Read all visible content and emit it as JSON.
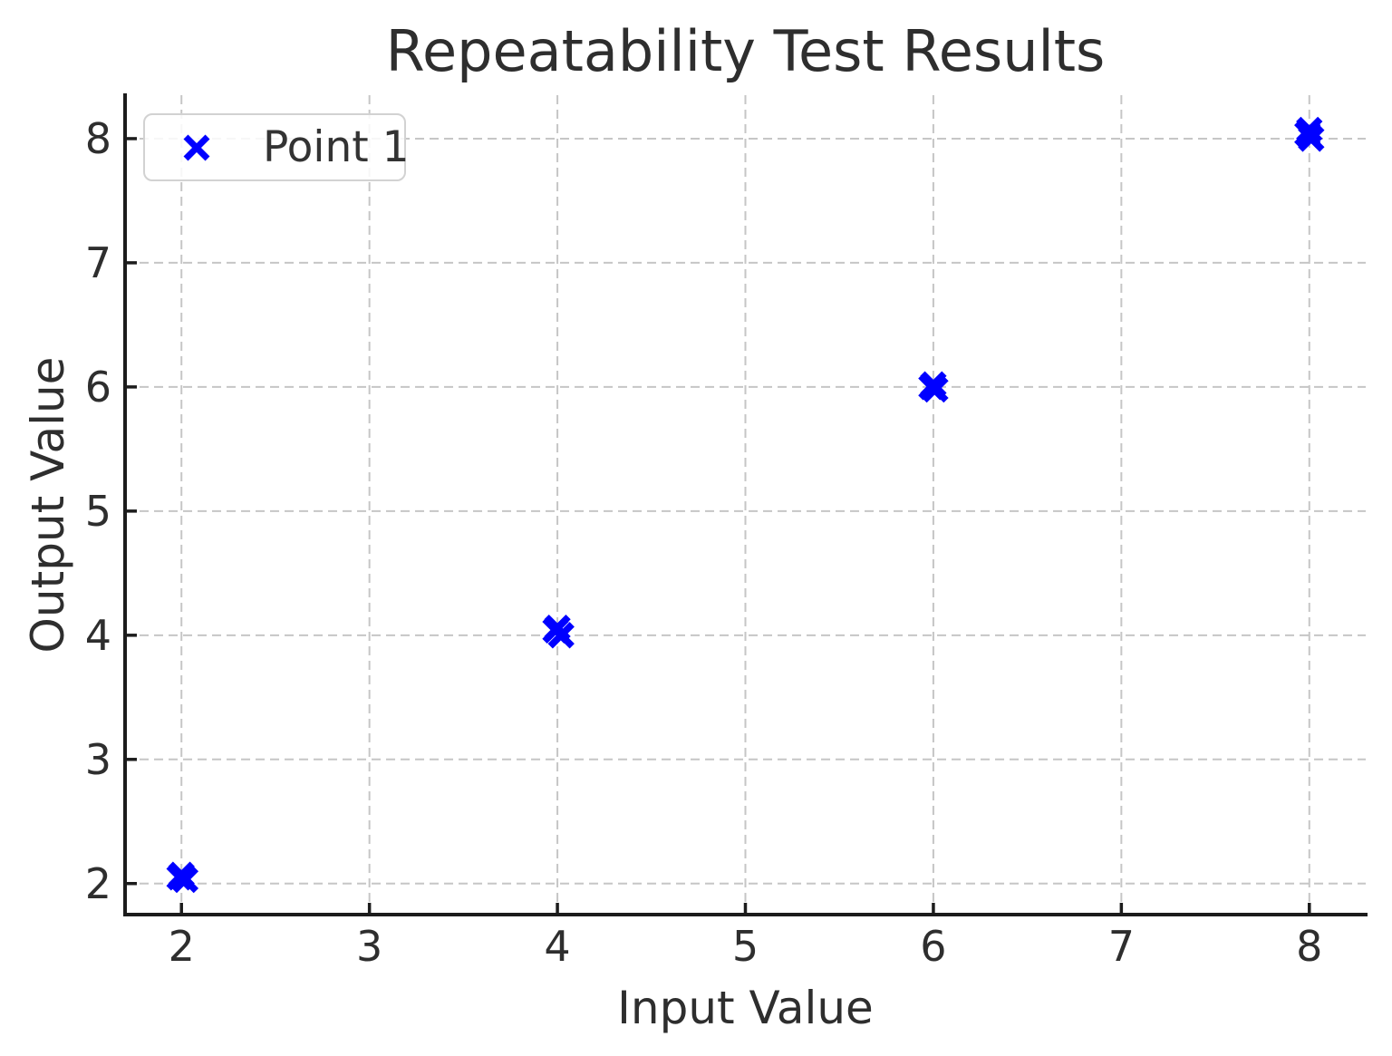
{
  "chart_data": {
    "type": "scatter",
    "title": "Repeatability Test Results",
    "xlabel": "Input Value",
    "ylabel": "Output Value",
    "xlim": [
      1.7,
      8.3
    ],
    "ylim": [
      1.75,
      8.35
    ],
    "xticks": [
      2,
      3,
      4,
      5,
      6,
      7,
      8
    ],
    "yticks": [
      2,
      3,
      4,
      5,
      6,
      7,
      8
    ],
    "grid": true,
    "grid_style": "dashed",
    "legend": {
      "position": "upper-left",
      "entries": [
        {
          "label": "Point 1",
          "marker": "x",
          "color": "#0000ff"
        }
      ]
    },
    "series": [
      {
        "name": "Point 1",
        "marker": "x",
        "color": "#0000ff",
        "points": [
          [
            2.0,
            2.07
          ],
          [
            2.02,
            2.03
          ],
          [
            1.99,
            2.05
          ],
          [
            4.0,
            4.06
          ],
          [
            4.02,
            4.0
          ],
          [
            3.99,
            4.04
          ],
          [
            6.0,
            6.02
          ],
          [
            6.01,
            5.98
          ],
          [
            5.99,
            6.0
          ],
          [
            8.0,
            8.07
          ],
          [
            8.01,
            8.0
          ],
          [
            7.99,
            8.04
          ]
        ]
      }
    ]
  }
}
